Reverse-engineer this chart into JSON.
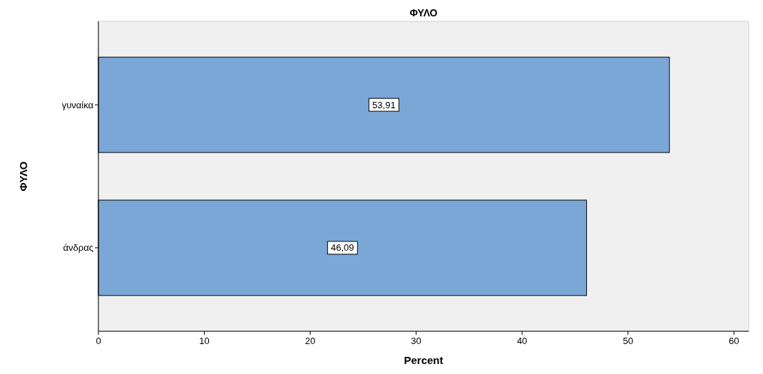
{
  "chart_data": {
    "type": "bar",
    "orientation": "horizontal",
    "title": "ΦΥΛΟ",
    "xlabel": "Percent",
    "ylabel": "ΦΥΛΟ",
    "categories": [
      "γυναίκα",
      "άνδρας"
    ],
    "values": [
      53.91,
      46.09
    ],
    "value_labels": [
      "53,91",
      "46,09"
    ],
    "color": "#7ba7d6",
    "xlim": [
      0,
      61.4
    ],
    "xticks": [
      0,
      10,
      20,
      30,
      40,
      50,
      60
    ]
  }
}
